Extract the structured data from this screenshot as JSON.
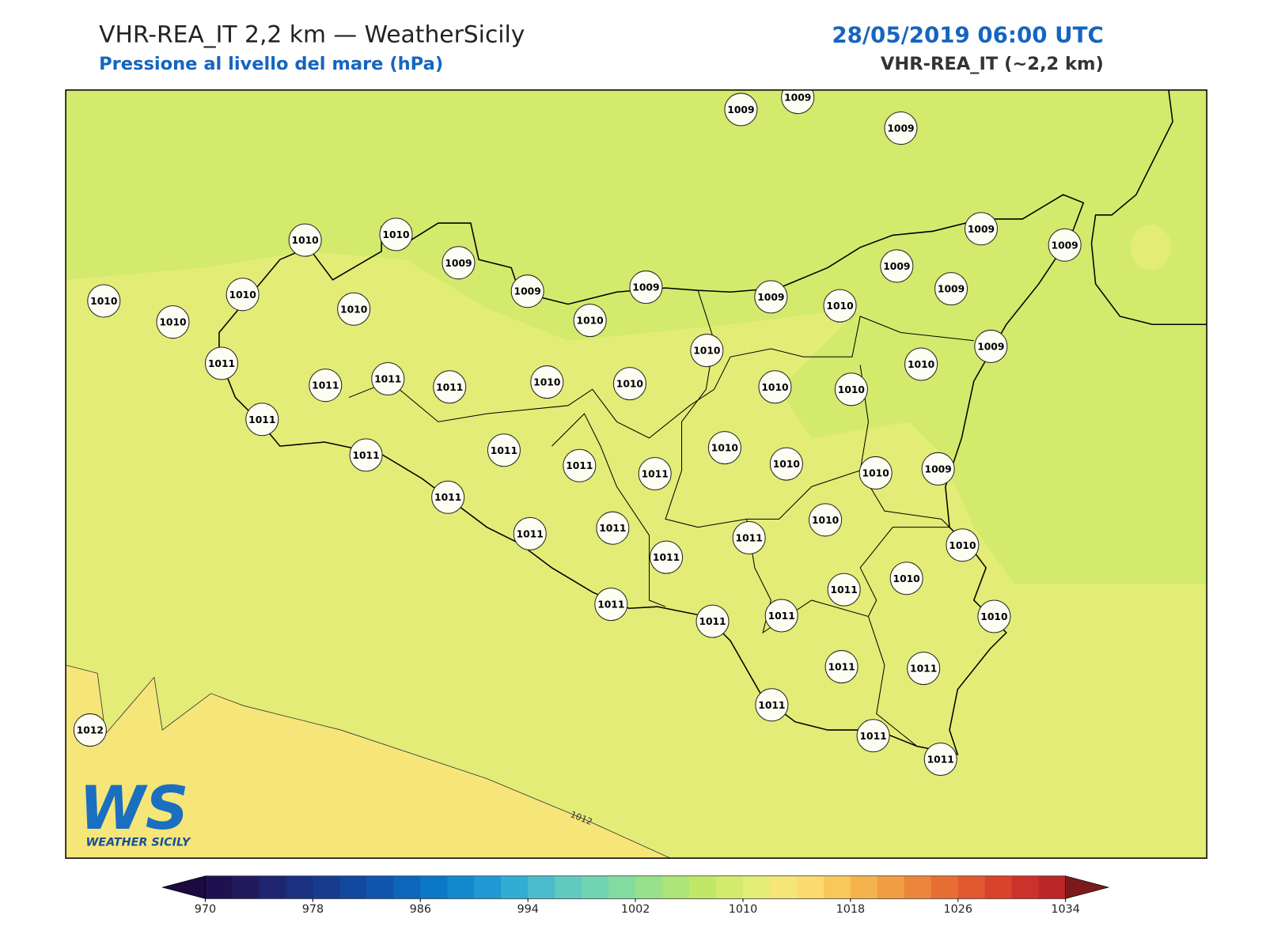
{
  "header": {
    "title": "VHR-REA_IT 2,2 km — WeatherSicily",
    "subtitle": "Pressione al livello del mare (hPa)",
    "datetime": "28/05/2019 06:00 UTC",
    "model": "VHR-REA_IT (~2,2 km)"
  },
  "stations": [
    1009,
    1009,
    1009,
    1010,
    1010,
    1009,
    1009,
    1009,
    1009,
    1009,
    1010,
    1010,
    1010,
    1010,
    1010,
    1009,
    1010,
    1009,
    1009,
    1009,
    1011,
    1011,
    1011,
    1011,
    1010,
    1010,
    1010,
    1010,
    1010,
    1010,
    1011,
    1011,
    1011,
    1011,
    1011,
    1010,
    1010,
    1010,
    1009,
    1011,
    1011,
    1011,
    1011,
    1011,
    1010,
    1010,
    1011,
    1010,
    1011,
    1011,
    1011,
    1010,
    1011,
    1011,
    1011,
    1011,
    1011,
    1012
  ],
  "contour_label": "1012",
  "logo": {
    "mark": "WS",
    "text": "WEATHER SICILY"
  },
  "colorbar": {
    "min": 970,
    "max": 1034,
    "ticks": [
      970,
      978,
      986,
      994,
      1002,
      1010,
      1018,
      1026,
      1034
    ],
    "colors": [
      "#1f1150",
      "#231a5e",
      "#20256f",
      "#1c3080",
      "#173b8f",
      "#13489f",
      "#1056ae",
      "#0c66bb",
      "#0a77c7",
      "#1488cf",
      "#2198d3",
      "#33acd3",
      "#4cbccc",
      "#60c9c0",
      "#70d3b2",
      "#84db9f",
      "#98e08b",
      "#ace477",
      "#c0e766",
      "#d3ea6c",
      "#e3ec76",
      "#f6e679",
      "#fbdb6d",
      "#f8c85b",
      "#f5b34d",
      "#f19d42",
      "#ec853a",
      "#e76e33",
      "#e1572f",
      "#d9422d",
      "#cc322c",
      "#bb2629"
    ],
    "under_color": "#1a0a3f",
    "over_color": "#7a1a1a"
  }
}
